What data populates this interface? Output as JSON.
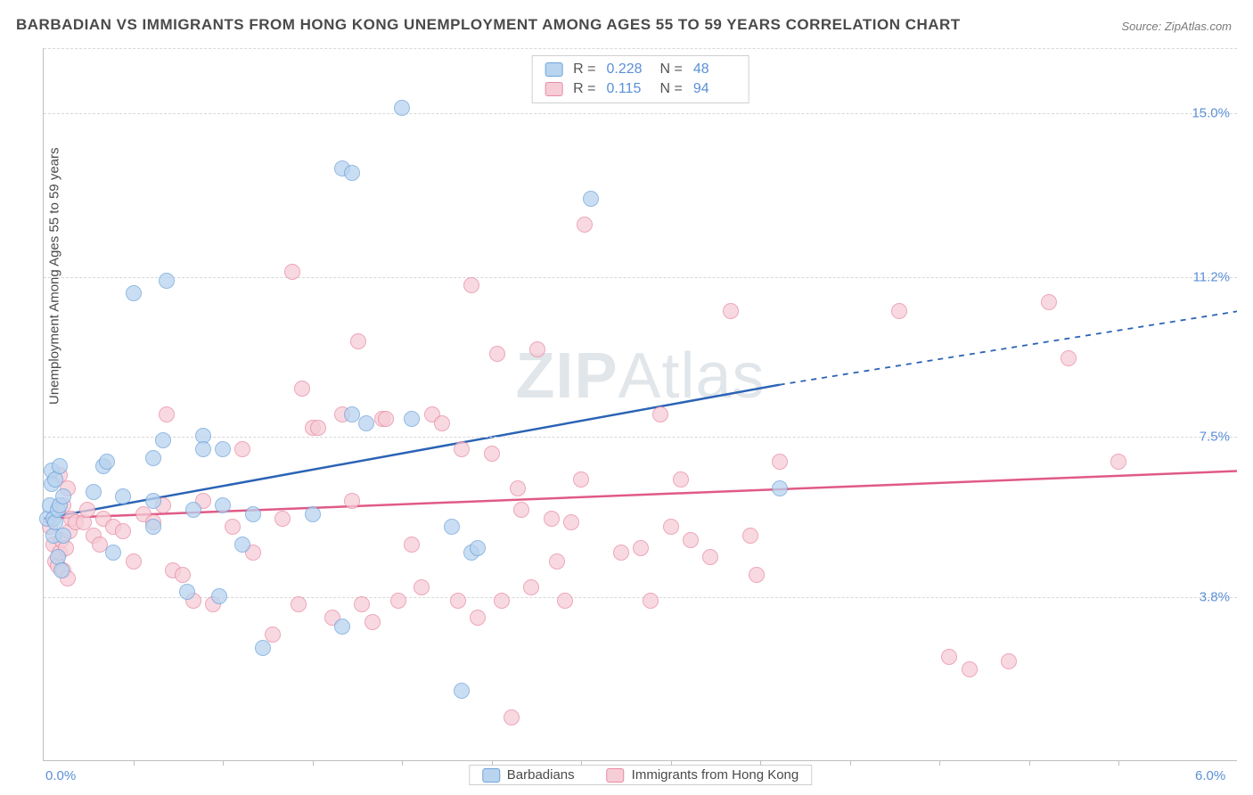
{
  "title": "BARBADIAN VS IMMIGRANTS FROM HONG KONG UNEMPLOYMENT AMONG AGES 55 TO 59 YEARS CORRELATION CHART",
  "source": "Source: ZipAtlas.com",
  "ylabel": "Unemployment Among Ages 55 to 59 years",
  "watermark_bold": "ZIP",
  "watermark_thin": "Atlas",
  "chart": {
    "type": "scatter",
    "background_color": "#ffffff",
    "grid_color": "#d8d8d8",
    "axis_color": "#bfbfbf",
    "label_color": "#4a4a4a",
    "tick_color": "#5b8fd6",
    "title_fontsize": 17,
    "label_fontsize": 15,
    "tick_fontsize": 15,
    "xlim": [
      0.0,
      6.0
    ],
    "ylim": [
      0.0,
      16.5
    ],
    "x_ticks": [
      {
        "v": 0.0,
        "label": "0.0%"
      },
      {
        "v": 6.0,
        "label": "6.0%"
      }
    ],
    "y_ticks": [
      {
        "v": 3.8,
        "label": "3.8%"
      },
      {
        "v": 7.5,
        "label": "7.5%"
      },
      {
        "v": 11.2,
        "label": "11.2%"
      },
      {
        "v": 15.0,
        "label": "15.0%"
      }
    ],
    "x_minor_ticks": [
      0.45,
      0.9,
      1.35,
      1.8,
      2.25,
      2.7,
      3.15,
      3.6,
      4.05,
      4.5,
      4.95,
      5.4
    ],
    "marker_radius": 9,
    "marker_opacity": 0.75
  },
  "series": {
    "a": {
      "label": "Barbadians",
      "fill": "#b9d4ef",
      "stroke": "#6fa3dc",
      "line_color": "#2b63b5",
      "line_width": 2.5,
      "R_label": "R =",
      "R": "0.228",
      "N_label": "N =",
      "N": "48",
      "trend": {
        "x1": 0.0,
        "y1": 5.6,
        "x2": 3.7,
        "y2": 8.7,
        "ext_x2": 6.0,
        "ext_y2": 10.4,
        "dash": "6,6"
      },
      "points": [
        [
          0.02,
          5.6
        ],
        [
          0.03,
          5.9
        ],
        [
          0.04,
          6.7
        ],
        [
          0.04,
          6.4
        ],
        [
          0.05,
          5.2
        ],
        [
          0.05,
          5.6
        ],
        [
          0.06,
          5.5
        ],
        [
          0.07,
          5.8
        ],
        [
          0.06,
          6.5
        ],
        [
          0.08,
          6.8
        ],
        [
          0.07,
          4.7
        ],
        [
          0.09,
          4.4
        ],
        [
          0.08,
          5.9
        ],
        [
          0.1,
          5.2
        ],
        [
          0.1,
          6.1
        ],
        [
          0.45,
          10.8
        ],
        [
          0.62,
          11.1
        ],
        [
          0.3,
          6.8
        ],
        [
          0.32,
          6.9
        ],
        [
          0.55,
          7.0
        ],
        [
          0.6,
          7.4
        ],
        [
          0.8,
          7.5
        ],
        [
          0.25,
          6.2
        ],
        [
          0.4,
          6.1
        ],
        [
          0.55,
          6.0
        ],
        [
          0.75,
          5.8
        ],
        [
          0.9,
          5.9
        ],
        [
          0.8,
          7.2
        ],
        [
          0.9,
          7.2
        ],
        [
          0.35,
          4.8
        ],
        [
          0.55,
          5.4
        ],
        [
          0.72,
          3.9
        ],
        [
          0.88,
          3.8
        ],
        [
          1.05,
          5.7
        ],
        [
          1.0,
          5.0
        ],
        [
          1.1,
          2.6
        ],
        [
          1.35,
          5.7
        ],
        [
          1.5,
          3.1
        ],
        [
          1.5,
          13.7
        ],
        [
          1.55,
          13.6
        ],
        [
          1.55,
          8.0
        ],
        [
          1.62,
          7.8
        ],
        [
          1.85,
          7.9
        ],
        [
          1.8,
          15.1
        ],
        [
          2.05,
          5.4
        ],
        [
          2.1,
          1.6
        ],
        [
          2.15,
          4.8
        ],
        [
          2.18,
          4.9
        ],
        [
          2.75,
          13.0
        ],
        [
          3.7,
          6.3
        ]
      ]
    },
    "b": {
      "label": "Immigrants from Hong Kong",
      "fill": "#f6cdd7",
      "stroke": "#e88aa2",
      "line_color": "#e05a86",
      "line_width": 2.5,
      "R_label": "R =",
      "R": "0.115",
      "N_label": "N =",
      "N": "94",
      "trend": {
        "x1": 0.0,
        "y1": 5.6,
        "x2": 6.0,
        "y2": 6.7,
        "ext_x2": 6.0,
        "ext_y2": 6.7,
        "dash": ""
      },
      "points": [
        [
          0.03,
          5.4
        ],
        [
          0.05,
          5.0
        ],
        [
          0.06,
          4.6
        ],
        [
          0.07,
          4.5
        ],
        [
          0.08,
          4.8
        ],
        [
          0.09,
          5.1
        ],
        [
          0.1,
          4.4
        ],
        [
          0.12,
          4.2
        ],
        [
          0.11,
          4.9
        ],
        [
          0.13,
          5.3
        ],
        [
          0.14,
          5.6
        ],
        [
          0.1,
          5.9
        ],
        [
          0.12,
          6.3
        ],
        [
          0.08,
          6.6
        ],
        [
          0.16,
          5.5
        ],
        [
          0.2,
          5.5
        ],
        [
          0.22,
          5.8
        ],
        [
          0.25,
          5.2
        ],
        [
          0.28,
          5.0
        ],
        [
          0.3,
          5.6
        ],
        [
          0.35,
          5.4
        ],
        [
          0.4,
          5.3
        ],
        [
          0.45,
          4.6
        ],
        [
          0.5,
          5.7
        ],
        [
          0.55,
          5.5
        ],
        [
          0.6,
          5.9
        ],
        [
          0.62,
          8.0
        ],
        [
          0.65,
          4.4
        ],
        [
          0.7,
          4.3
        ],
        [
          0.75,
          3.7
        ],
        [
          0.8,
          6.0
        ],
        [
          0.85,
          3.6
        ],
        [
          0.95,
          5.4
        ],
        [
          1.0,
          7.2
        ],
        [
          1.05,
          4.8
        ],
        [
          1.15,
          2.9
        ],
        [
          1.2,
          5.6
        ],
        [
          1.25,
          11.3
        ],
        [
          1.28,
          3.6
        ],
        [
          1.3,
          8.6
        ],
        [
          1.35,
          7.7
        ],
        [
          1.38,
          7.7
        ],
        [
          1.45,
          3.3
        ],
        [
          1.5,
          8.0
        ],
        [
          1.55,
          6.0
        ],
        [
          1.58,
          9.7
        ],
        [
          1.6,
          3.6
        ],
        [
          1.65,
          3.2
        ],
        [
          1.7,
          7.9
        ],
        [
          1.72,
          7.9
        ],
        [
          1.78,
          3.7
        ],
        [
          1.85,
          5.0
        ],
        [
          1.9,
          4.0
        ],
        [
          1.95,
          8.0
        ],
        [
          2.0,
          7.8
        ],
        [
          2.08,
          3.7
        ],
        [
          2.1,
          7.2
        ],
        [
          2.15,
          11.0
        ],
        [
          2.18,
          3.3
        ],
        [
          2.25,
          7.1
        ],
        [
          2.28,
          9.4
        ],
        [
          2.3,
          3.7
        ],
        [
          2.35,
          1.0
        ],
        [
          2.38,
          6.3
        ],
        [
          2.4,
          5.8
        ],
        [
          2.45,
          4.0
        ],
        [
          2.48,
          9.5
        ],
        [
          2.55,
          5.6
        ],
        [
          2.58,
          4.6
        ],
        [
          2.62,
          3.7
        ],
        [
          2.65,
          5.5
        ],
        [
          2.7,
          6.5
        ],
        [
          2.72,
          12.4
        ],
        [
          2.9,
          4.8
        ],
        [
          3.0,
          4.9
        ],
        [
          3.05,
          3.7
        ],
        [
          3.1,
          8.0
        ],
        [
          3.15,
          5.4
        ],
        [
          3.2,
          6.5
        ],
        [
          3.25,
          5.1
        ],
        [
          3.35,
          4.7
        ],
        [
          3.45,
          10.4
        ],
        [
          3.55,
          5.2
        ],
        [
          3.58,
          4.3
        ],
        [
          3.7,
          6.9
        ],
        [
          4.3,
          10.4
        ],
        [
          4.55,
          2.4
        ],
        [
          4.65,
          2.1
        ],
        [
          4.85,
          2.3
        ],
        [
          5.05,
          10.6
        ],
        [
          5.15,
          9.3
        ],
        [
          5.4,
          6.9
        ]
      ]
    }
  }
}
